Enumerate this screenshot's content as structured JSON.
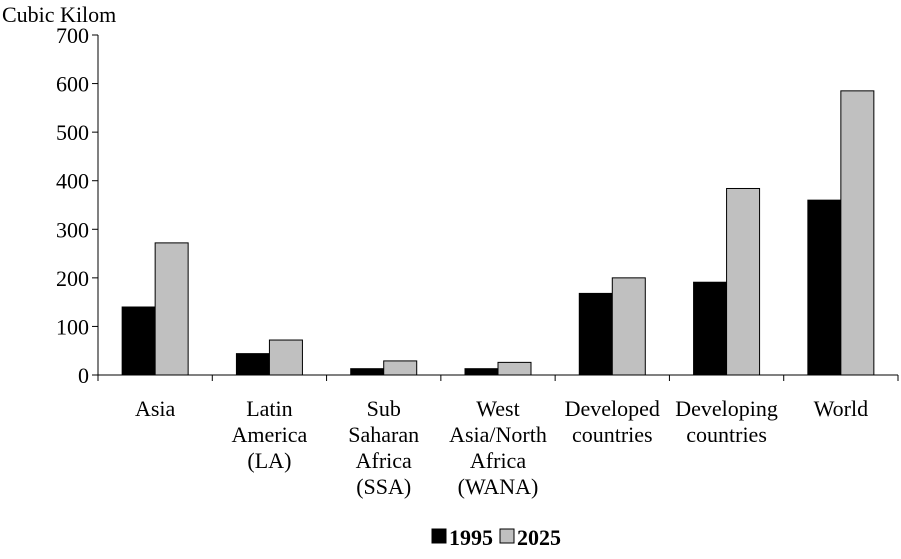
{
  "chart_data": {
    "type": "bar",
    "ylabel": "Cubic Kilom",
    "categories": [
      [
        "Asia"
      ],
      [
        "Latin",
        "America",
        "(LA)"
      ],
      [
        "Sub",
        "Saharan",
        "Africa",
        "(SSA)"
      ],
      [
        "West",
        "Asia/North",
        "Africa",
        "(WANA)"
      ],
      [
        "Developed",
        "countries"
      ],
      [
        "Developing",
        "countries"
      ],
      [
        "World"
      ]
    ],
    "series": [
      {
        "name": "1995",
        "color": "#000000",
        "values": [
          140,
          44,
          13,
          13,
          168,
          191,
          360
        ]
      },
      {
        "name": "2025",
        "color": "#c0c0c0",
        "values": [
          272,
          72,
          29,
          26,
          200,
          384,
          585
        ]
      }
    ],
    "ylim": [
      0,
      700
    ],
    "yticks": [
      0,
      100,
      200,
      300,
      400,
      500,
      600,
      700
    ],
    "legend_position": "bottom",
    "grid": false
  }
}
